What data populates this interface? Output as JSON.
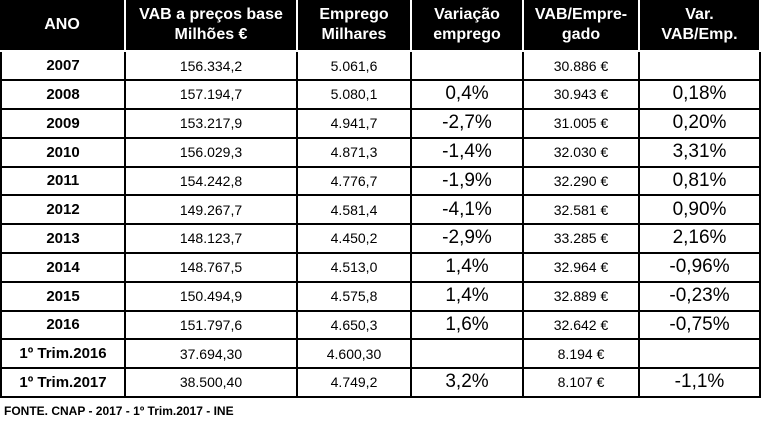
{
  "table": {
    "header": [
      [
        "ANO"
      ],
      [
        "VAB a preços base",
        "Milhões €"
      ],
      [
        "Emprego",
        "Milhares"
      ],
      [
        "Variação",
        "emprego"
      ],
      [
        "VAB/Empre-",
        "gado"
      ],
      [
        "Var.",
        "VAB/Emp."
      ]
    ],
    "rows": [
      [
        "2007",
        "156.334,2",
        "5.061,6",
        null,
        "30.886 €",
        null
      ],
      [
        "2008",
        "157.194,7",
        "5.080,1",
        "0,4%",
        "30.943 €",
        "0,18%"
      ],
      [
        "2009",
        "153.217,9",
        "4.941,7",
        "-2,7%",
        "31.005 €",
        "0,20%"
      ],
      [
        "2010",
        "156.029,3",
        "4.871,3",
        "-1,4%",
        "32.030 €",
        "3,31%"
      ],
      [
        "2011",
        "154.242,8",
        "4.776,7",
        "-1,9%",
        "32.290 €",
        "0,81%"
      ],
      [
        "2012",
        "149.267,7",
        "4.581,4",
        "-4,1%",
        "32.581 €",
        "0,90%"
      ],
      [
        "2013",
        "148.123,7",
        "4.450,2",
        "-2,9%",
        "33.285 €",
        "2,16%"
      ],
      [
        "2014",
        "148.767,5",
        "4.513,0",
        "1,4%",
        "32.964 €",
        "-0,96%"
      ],
      [
        "2015",
        "150.494,9",
        "4.575,8",
        "1,4%",
        "32.889 €",
        "-0,23%"
      ],
      [
        "2016",
        "151.797,6",
        "4.650,3",
        "1,6%",
        "32.642 €",
        "-0,75%"
      ],
      [
        "1º Trim.2016",
        "37.694,30",
        "4.600,30",
        null,
        "8.194 €",
        null
      ],
      [
        "1º Trim.2017",
        "38.500,40",
        "4.749,2",
        "3,2%",
        "8.107 €",
        "-1,1%"
      ]
    ],
    "source": "FONTE. CNAP - 2017 - 1º Trim.2017 - INE"
  }
}
